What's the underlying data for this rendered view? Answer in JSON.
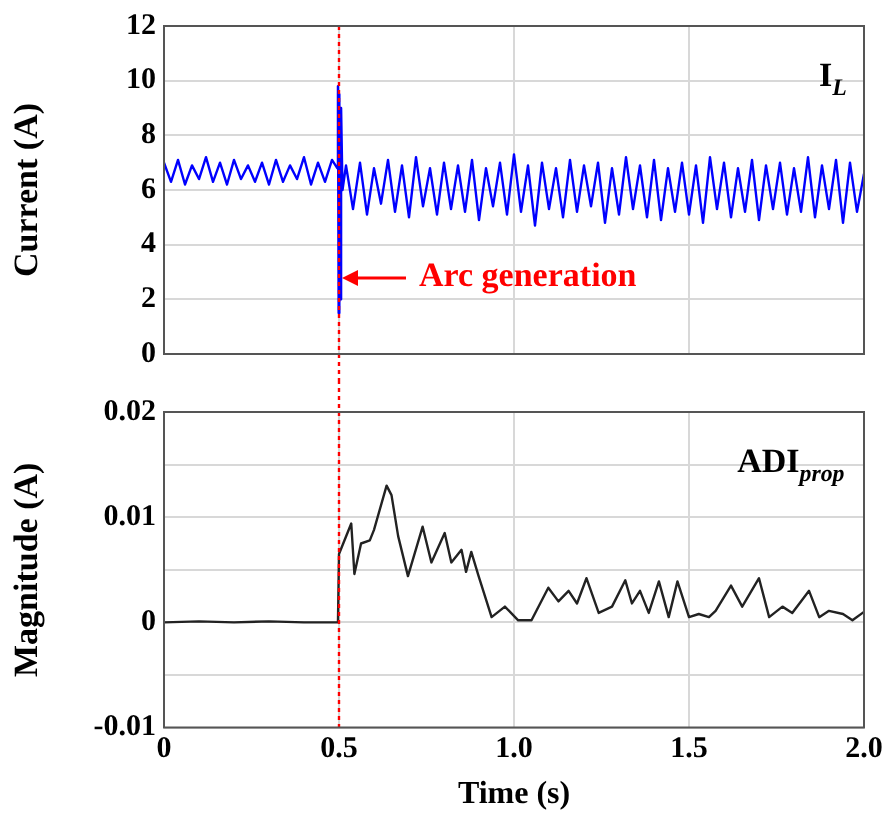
{
  "chart_data": [
    {
      "type": "line",
      "ylabel": "Current (A)",
      "annotations": [
        "I$_{L}$",
        {
          "text": "Arc generation",
          "x": 0.5,
          "y": 2.8
        }
      ],
      "xlim": [
        0,
        2
      ],
      "xticks": [
        0,
        0.5,
        1,
        1.5,
        2
      ],
      "ylim": [
        0,
        12
      ],
      "yticks": [
        0,
        2,
        4,
        6,
        8,
        10,
        12
      ],
      "tick_labels": "y",
      "grid": true,
      "legend": false,
      "marker": "none",
      "line_style": "solid",
      "ref_lines": [
        {
          "axis": "x",
          "value": 0.5,
          "color": "#ff0000",
          "line_style": "dotted"
        }
      ],
      "series": [
        {
          "color": "#0000ff",
          "x": [
            0,
            0.02,
            0.04,
            0.06,
            0.08,
            0.1,
            0.12,
            0.14,
            0.16,
            0.18,
            0.2,
            0.22,
            0.24,
            0.26,
            0.28,
            0.3,
            0.32,
            0.34,
            0.36,
            0.38,
            0.4,
            0.42,
            0.44,
            0.46,
            0.48,
            0.495,
            0.497,
            0.499,
            0.501,
            0.503,
            0.506,
            0.51,
            0.52,
            0.54,
            0.56,
            0.58,
            0.6,
            0.62,
            0.64,
            0.66,
            0.68,
            0.7,
            0.72,
            0.74,
            0.76,
            0.78,
            0.8,
            0.82,
            0.84,
            0.86,
            0.88,
            0.9,
            0.92,
            0.94,
            0.96,
            0.98,
            1,
            1.02,
            1.04,
            1.06,
            1.08,
            1.1,
            1.12,
            1.14,
            1.16,
            1.18,
            1.2,
            1.22,
            1.24,
            1.26,
            1.28,
            1.3,
            1.32,
            1.34,
            1.36,
            1.38,
            1.4,
            1.42,
            1.44,
            1.46,
            1.48,
            1.5,
            1.52,
            1.54,
            1.56,
            1.58,
            1.6,
            1.62,
            1.64,
            1.66,
            1.68,
            1.7,
            1.72,
            1.74,
            1.76,
            1.78,
            1.8,
            1.82,
            1.84,
            1.86,
            1.88,
            1.9,
            1.92,
            1.94,
            1.96,
            1.98,
            2
          ],
          "values": [
            7.0,
            6.3,
            7.1,
            6.2,
            6.9,
            6.4,
            7.2,
            6.3,
            7.0,
            6.2,
            7.1,
            6.4,
            6.9,
            6.3,
            7.0,
            6.2,
            7.1,
            6.3,
            6.9,
            6.4,
            7.2,
            6.2,
            7.0,
            6.3,
            7.1,
            6.8,
            9.8,
            1.5,
            9.5,
            2.0,
            9.0,
            6.0,
            6.9,
            5.3,
            7.0,
            5.1,
            6.8,
            5.5,
            7.1,
            5.2,
            6.9,
            5.0,
            7.2,
            5.4,
            6.8,
            5.1,
            7.0,
            5.3,
            6.9,
            5.2,
            7.1,
            4.9,
            6.8,
            5.4,
            7.0,
            5.1,
            7.3,
            5.2,
            6.9,
            4.7,
            7.0,
            5.3,
            6.8,
            5.0,
            7.1,
            5.2,
            6.9,
            5.4,
            7.0,
            4.8,
            6.8,
            5.1,
            7.2,
            5.3,
            6.9,
            5.0,
            7.1,
            4.9,
            6.8,
            5.2,
            7.0,
            5.1,
            6.9,
            4.8,
            7.2,
            5.3,
            7.0,
            5.0,
            6.8,
            5.2,
            7.1,
            4.9,
            6.9,
            5.3,
            7.0,
            5.1,
            6.8,
            5.2,
            7.2,
            5.0,
            6.9,
            5.3,
            7.1,
            4.8,
            7.0,
            5.2,
            6.6
          ]
        }
      ]
    },
    {
      "type": "line",
      "xlabel": "Time (s)",
      "ylabel": "Magnitude (A)",
      "annotations": [
        "ADI$_{prop}$"
      ],
      "xlim": [
        0,
        2
      ],
      "xticks": [
        0,
        0.5,
        {
          "value": 1,
          "label": "1.0"
        },
        1.5,
        {
          "value": 2,
          "label": "2.0"
        }
      ],
      "ylim": [
        -0.01,
        0.02
      ],
      "yticks": [
        -0.01,
        {
          "value": -0.005,
          "label": null
        },
        0,
        {
          "value": 0.005,
          "label": null
        },
        0.01,
        {
          "value": 0.015,
          "label": null
        },
        0.02
      ],
      "grid": true,
      "legend": false,
      "marker": "none",
      "line_style": "solid",
      "ref_lines": [
        {
          "axis": "x",
          "value": 0.5,
          "color": "#ff0000",
          "line_style": "dotted"
        }
      ],
      "series": [
        {
          "color": "#222222",
          "x": [
            0,
            0.1,
            0.2,
            0.3,
            0.4,
            0.497,
            0.5,
            0.535,
            0.544,
            0.563,
            0.588,
            0.6,
            0.636,
            0.65,
            0.669,
            0.697,
            0.739,
            0.764,
            0.802,
            0.821,
            0.85,
            0.863,
            0.878,
            0.898,
            0.936,
            0.974,
            1.012,
            1.05,
            1.098,
            1.127,
            1.156,
            1.18,
            1.207,
            1.242,
            1.28,
            1.318,
            1.337,
            1.36,
            1.385,
            1.414,
            1.442,
            1.467,
            1.5,
            1.528,
            1.557,
            1.576,
            1.62,
            1.652,
            1.7,
            1.729,
            1.767,
            1.795,
            1.843,
            1.872,
            1.9,
            1.94,
            1.967,
            2
          ],
          "values": [
            0,
            0.0001,
            0,
            0.0001,
            0,
            0,
            0.0065,
            0.0094,
            0.0046,
            0.0075,
            0.0078,
            0.0088,
            0.013,
            0.0121,
            0.0082,
            0.0044,
            0.0091,
            0.0057,
            0.0085,
            0.0057,
            0.0069,
            0.0048,
            0.0067,
            0.0045,
            0.0005,
            0.0015,
            0.0002,
            0.0002,
            0.0033,
            0.002,
            0.003,
            0.0018,
            0.0042,
            0.0009,
            0.0015,
            0.004,
            0.0018,
            0.003,
            0.0009,
            0.0039,
            0.0005,
            0.0039,
            0.0005,
            0.0008,
            0.0005,
            0.0011,
            0.0035,
            0.0015,
            0.0042,
            0.0005,
            0.0015,
            0.0009,
            0.003,
            0.0005,
            0.0011,
            0.0008,
            0.0002,
            0.001
          ]
        }
      ]
    }
  ]
}
